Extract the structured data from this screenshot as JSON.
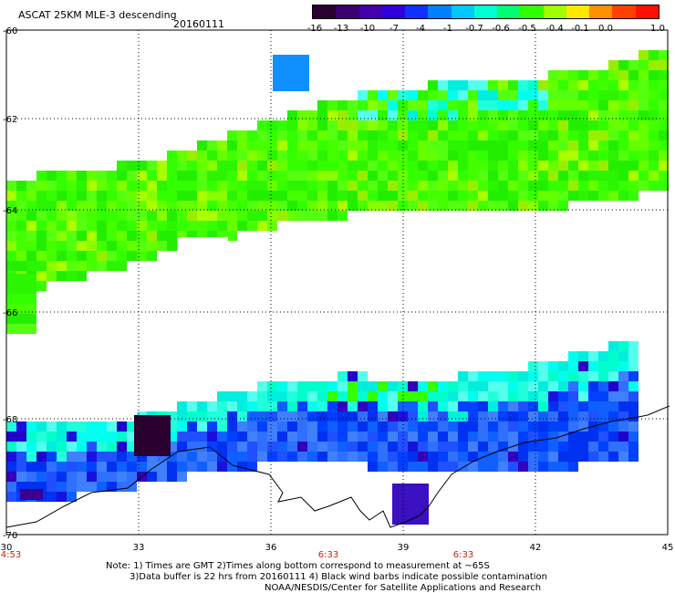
{
  "header": {
    "title": "ASCAT 25KM MLE-3 descending",
    "date": "20160111"
  },
  "colorbar": {
    "labels": [
      "-16",
      "-13",
      "-10",
      "-7",
      "-4",
      "-1",
      "-0.7",
      "-0.6",
      "-0.5",
      "-0.4",
      "-0.1",
      "0.0",
      "1.0"
    ],
    "colors": [
      "#2a0030",
      "#3a0070",
      "#4400aa",
      "#3000d8",
      "#1030ff",
      "#0080ff",
      "#00c8ff",
      "#00ffd0",
      "#00ff70",
      "#30ff00",
      "#a0ff00",
      "#ffe800",
      "#ff9000",
      "#ff4000",
      "#ff1000"
    ]
  },
  "map": {
    "x_ticks": [
      "30",
      "33",
      "36",
      "39",
      "42",
      "45"
    ],
    "y_ticks": [
      "-60",
      "-62",
      "-64",
      "-66",
      "-68",
      "-70"
    ],
    "x_range": [
      30,
      45
    ],
    "y_range": [
      -70,
      -60
    ],
    "time_labels": [
      "4:53",
      "6:33",
      "6:33"
    ]
  },
  "notes": {
    "line1": "Note: 1) Times are GMT 2)Times along bottom correspond to measurement at ~65S",
    "line2": "3)Data buffer is 22 hrs from 20160111 4) Black wind barbs indicate possible contamination",
    "line3": "NOAA/NESDIS/Center for Satellite Applications and Research"
  }
}
